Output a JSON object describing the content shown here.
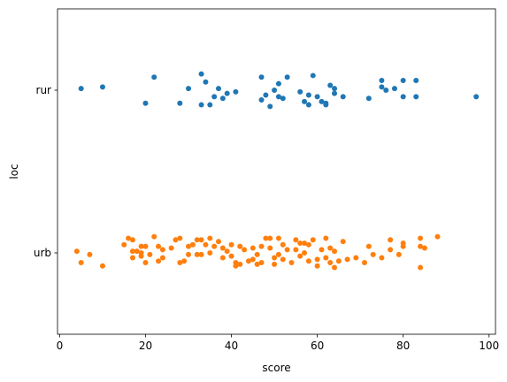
{
  "chart_data": {
    "type": "strip",
    "xlabel": "score",
    "ylabel": "loc",
    "xlim": [
      -0.5,
      101.5
    ],
    "xticks": [
      0,
      20,
      40,
      60,
      80,
      100
    ],
    "categories": [
      "rur",
      "urb"
    ],
    "grid": false,
    "legend": "none",
    "series": [
      {
        "category": "rur",
        "color": "#1f77b4",
        "points": [
          {
            "x": 5,
            "j": -0.01
          },
          {
            "x": 10,
            "j": -0.02
          },
          {
            "x": 20,
            "j": 0.08
          },
          {
            "x": 22,
            "j": -0.08
          },
          {
            "x": 28,
            "j": 0.08
          },
          {
            "x": 30,
            "j": -0.01
          },
          {
            "x": 33,
            "j": 0.09
          },
          {
            "x": 33,
            "j": -0.1
          },
          {
            "x": 34,
            "j": -0.05
          },
          {
            "x": 35,
            "j": 0.09
          },
          {
            "x": 36,
            "j": 0.04
          },
          {
            "x": 37,
            "j": -0.01
          },
          {
            "x": 38,
            "j": 0.05
          },
          {
            "x": 39,
            "j": 0.02
          },
          {
            "x": 41,
            "j": 0.01
          },
          {
            "x": 47,
            "j": -0.08
          },
          {
            "x": 47,
            "j": 0.06
          },
          {
            "x": 48,
            "j": 0.03
          },
          {
            "x": 49,
            "j": 0.1
          },
          {
            "x": 50,
            "j": 0.0
          },
          {
            "x": 51,
            "j": -0.04
          },
          {
            "x": 51,
            "j": 0.04
          },
          {
            "x": 52,
            "j": 0.05
          },
          {
            "x": 53,
            "j": -0.08
          },
          {
            "x": 56,
            "j": 0.01
          },
          {
            "x": 57,
            "j": 0.07
          },
          {
            "x": 58,
            "j": 0.03
          },
          {
            "x": 58,
            "j": 0.09
          },
          {
            "x": 59,
            "j": -0.09
          },
          {
            "x": 60,
            "j": 0.04
          },
          {
            "x": 61,
            "j": 0.07
          },
          {
            "x": 62,
            "j": 0.08
          },
          {
            "x": 62,
            "j": 0.09
          },
          {
            "x": 63,
            "j": -0.03
          },
          {
            "x": 64,
            "j": 0.02
          },
          {
            "x": 64,
            "j": -0.01
          },
          {
            "x": 66,
            "j": 0.04
          },
          {
            "x": 72,
            "j": 0.05
          },
          {
            "x": 75,
            "j": -0.06
          },
          {
            "x": 75,
            "j": -0.02
          },
          {
            "x": 76,
            "j": 0.0
          },
          {
            "x": 78,
            "j": -0.01
          },
          {
            "x": 80,
            "j": -0.06
          },
          {
            "x": 80,
            "j": 0.04
          },
          {
            "x": 83,
            "j": -0.06
          },
          {
            "x": 83,
            "j": 0.04
          },
          {
            "x": 97,
            "j": 0.04
          }
        ]
      },
      {
        "category": "urb",
        "color": "#ff7f0e",
        "points": [
          {
            "x": 4,
            "j": -0.01
          },
          {
            "x": 5,
            "j": 0.06
          },
          {
            "x": 7,
            "j": 0.01
          },
          {
            "x": 10,
            "j": 0.08
          },
          {
            "x": 15,
            "j": -0.05
          },
          {
            "x": 16,
            "j": -0.09
          },
          {
            "x": 17,
            "j": -0.08
          },
          {
            "x": 17,
            "j": -0.01
          },
          {
            "x": 17,
            "j": 0.03
          },
          {
            "x": 18,
            "j": -0.01
          },
          {
            "x": 19,
            "j": -0.04
          },
          {
            "x": 19,
            "j": 0.0
          },
          {
            "x": 19,
            "j": 0.02
          },
          {
            "x": 20,
            "j": -0.04
          },
          {
            "x": 20,
            "j": 0.06
          },
          {
            "x": 21,
            "j": 0.01
          },
          {
            "x": 22,
            "j": -0.1
          },
          {
            "x": 23,
            "j": -0.04
          },
          {
            "x": 23,
            "j": 0.05
          },
          {
            "x": 24,
            "j": -0.02
          },
          {
            "x": 24,
            "j": 0.03
          },
          {
            "x": 26,
            "j": -0.03
          },
          {
            "x": 27,
            "j": -0.08
          },
          {
            "x": 28,
            "j": -0.09
          },
          {
            "x": 28,
            "j": 0.06
          },
          {
            "x": 29,
            "j": 0.05
          },
          {
            "x": 30,
            "j": -0.04
          },
          {
            "x": 30,
            "j": 0.01
          },
          {
            "x": 31,
            "j": -0.05
          },
          {
            "x": 32,
            "j": -0.08
          },
          {
            "x": 32,
            "j": 0.01
          },
          {
            "x": 33,
            "j": -0.08
          },
          {
            "x": 33,
            "j": 0.01
          },
          {
            "x": 34,
            "j": -0.05
          },
          {
            "x": 35,
            "j": -0.09
          },
          {
            "x": 35,
            "j": 0.0
          },
          {
            "x": 36,
            "j": -0.04
          },
          {
            "x": 37,
            "j": -0.07
          },
          {
            "x": 38,
            "j": -0.03
          },
          {
            "x": 38,
            "j": 0.03
          },
          {
            "x": 39,
            "j": -0.01
          },
          {
            "x": 40,
            "j": -0.05
          },
          {
            "x": 40,
            "j": 0.02
          },
          {
            "x": 41,
            "j": 0.06
          },
          {
            "x": 41,
            "j": 0.08
          },
          {
            "x": 42,
            "j": -0.04
          },
          {
            "x": 42,
            "j": 0.07
          },
          {
            "x": 43,
            "j": -0.02
          },
          {
            "x": 44,
            "j": 0.05
          },
          {
            "x": 45,
            "j": -0.03
          },
          {
            "x": 45,
            "j": 0.04
          },
          {
            "x": 46,
            "j": 0.01
          },
          {
            "x": 46,
            "j": 0.07
          },
          {
            "x": 47,
            "j": -0.04
          },
          {
            "x": 47,
            "j": 0.06
          },
          {
            "x": 48,
            "j": -0.09
          },
          {
            "x": 49,
            "j": -0.09
          },
          {
            "x": 49,
            "j": -0.03
          },
          {
            "x": 50,
            "j": 0.03
          },
          {
            "x": 50,
            "j": 0.07
          },
          {
            "x": 51,
            "j": -0.09
          },
          {
            "x": 51,
            "j": 0.01
          },
          {
            "x": 52,
            "j": -0.05
          },
          {
            "x": 52,
            "j": 0.04
          },
          {
            "x": 53,
            "j": -0.02
          },
          {
            "x": 54,
            "j": 0.06
          },
          {
            "x": 55,
            "j": -0.08
          },
          {
            "x": 55,
            "j": -0.02
          },
          {
            "x": 56,
            "j": -0.06
          },
          {
            "x": 56,
            "j": 0.02
          },
          {
            "x": 57,
            "j": -0.06
          },
          {
            "x": 57,
            "j": 0.0
          },
          {
            "x": 58,
            "j": -0.05
          },
          {
            "x": 58,
            "j": 0.05
          },
          {
            "x": 59,
            "j": -0.08
          },
          {
            "x": 60,
            "j": 0.04
          },
          {
            "x": 60,
            "j": 0.08
          },
          {
            "x": 61,
            "j": -0.02
          },
          {
            "x": 62,
            "j": -0.09
          },
          {
            "x": 62,
            "j": 0.03
          },
          {
            "x": 63,
            "j": -0.03
          },
          {
            "x": 63,
            "j": 0.06
          },
          {
            "x": 64,
            "j": -0.01
          },
          {
            "x": 64,
            "j": 0.09
          },
          {
            "x": 65,
            "j": 0.05
          },
          {
            "x": 66,
            "j": -0.07
          },
          {
            "x": 67,
            "j": 0.04
          },
          {
            "x": 69,
            "j": 0.03
          },
          {
            "x": 71,
            "j": 0.06
          },
          {
            "x": 72,
            "j": -0.04
          },
          {
            "x": 73,
            "j": 0.01
          },
          {
            "x": 75,
            "j": 0.03
          },
          {
            "x": 77,
            "j": -0.02
          },
          {
            "x": 77,
            "j": -0.08
          },
          {
            "x": 79,
            "j": 0.01
          },
          {
            "x": 80,
            "j": -0.06
          },
          {
            "x": 80,
            "j": -0.04
          },
          {
            "x": 84,
            "j": -0.09
          },
          {
            "x": 84,
            "j": -0.04
          },
          {
            "x": 84,
            "j": 0.09
          },
          {
            "x": 85,
            "j": -0.03
          },
          {
            "x": 88,
            "j": -0.1
          }
        ]
      }
    ]
  }
}
